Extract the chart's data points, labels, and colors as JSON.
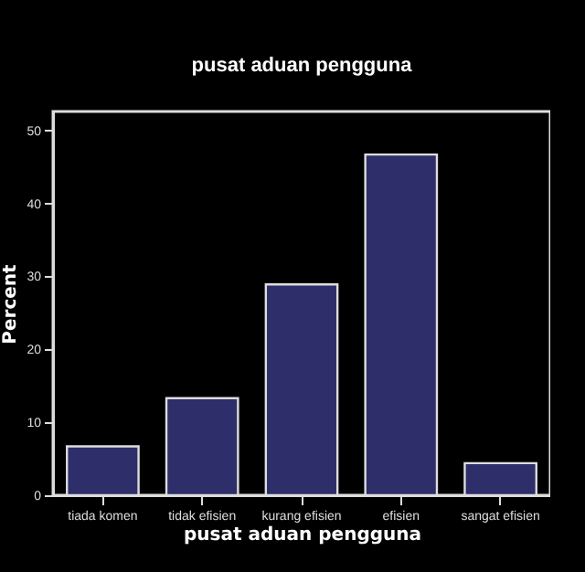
{
  "chart_data": {
    "type": "bar",
    "title": "pusat aduan pengguna",
    "xlabel": "pusat aduan pengguna",
    "ylabel": "Percent",
    "categories": [
      "tiada komen",
      "tidak efisien",
      "kurang efisien",
      "efisien",
      "sangat efisien"
    ],
    "values": [
      6.7,
      13.3,
      28.9,
      46.7,
      4.4
    ],
    "color": "#2e2e6a",
    "ylim": [
      0,
      52.6
    ],
    "yticks": [
      0,
      10,
      20,
      30,
      40,
      50
    ],
    "grid": false
  }
}
